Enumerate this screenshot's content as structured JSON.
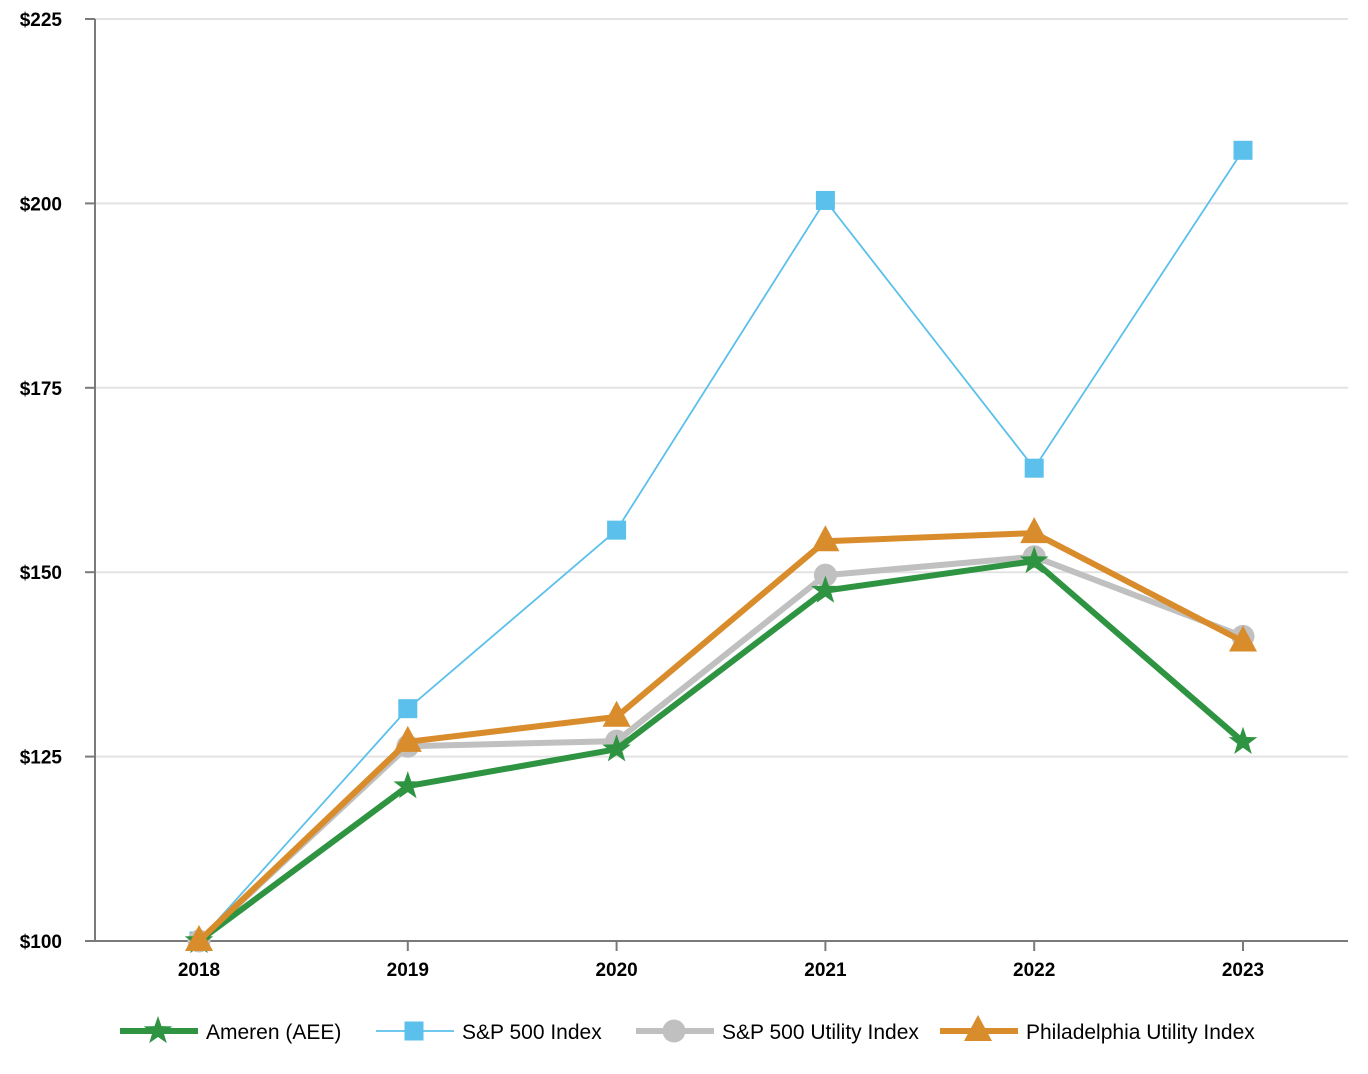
{
  "chart_data": {
    "type": "line",
    "categories": [
      "2018",
      "2019",
      "2020",
      "2021",
      "2022",
      "2023"
    ],
    "ylim": [
      100,
      225
    ],
    "yticks": [
      100,
      125,
      150,
      175,
      200,
      225
    ],
    "ytick_labels": [
      "$100",
      "$125",
      "$150",
      "$175",
      "$200",
      "$225"
    ],
    "grid": true,
    "legend_position": "bottom",
    "series": [
      {
        "name": "Ameren (AEE)",
        "values": [
          100,
          121,
          126,
          147.5,
          151.5,
          127
        ],
        "color": "#2e9442",
        "marker": "star",
        "line": "thick"
      },
      {
        "name": "S&P 500 Index",
        "values": [
          100,
          131.5,
          155.7,
          200.4,
          164.1,
          207.2
        ],
        "color": "#5bc0eb",
        "marker": "square",
        "line": "thin"
      },
      {
        "name": "S&P 500 Utility Index",
        "values": [
          100,
          126.4,
          127.1,
          149.6,
          152.1,
          141.3
        ],
        "color": "#c0c0c0",
        "marker": "circle",
        "line": "thick"
      },
      {
        "name": "Philadelphia Utility Index",
        "values": [
          100,
          127,
          130.4,
          154.2,
          155.3,
          140.6
        ],
        "color": "#d98c2b",
        "marker": "triangle",
        "line": "thick"
      }
    ]
  }
}
